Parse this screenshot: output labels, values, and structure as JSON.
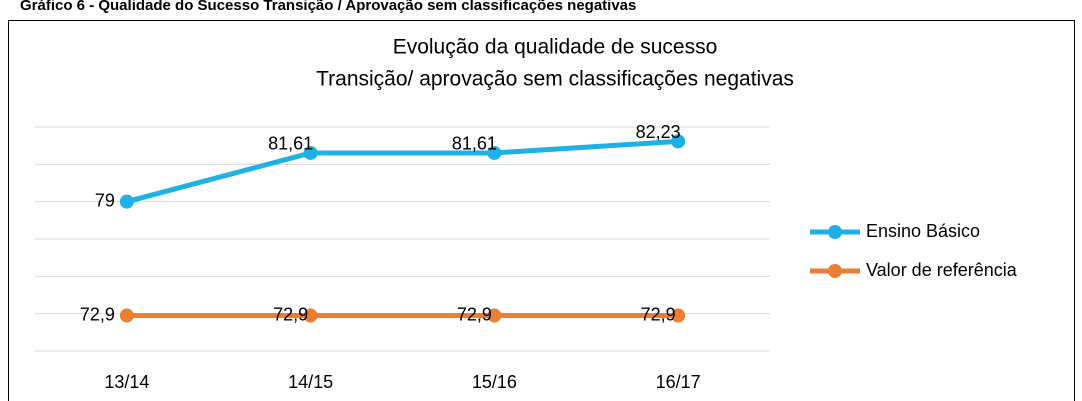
{
  "caption": "Gráfico 6 - Qualidade do Sucesso Transição / Aprovação sem classificações negativas",
  "chart_data": {
    "type": "line",
    "title": [
      "Evolução da qualidade de sucesso",
      "Transição/ aprovação sem classificações negativas"
    ],
    "categories": [
      "13/14",
      "14/15",
      "15/16",
      "16/17"
    ],
    "series": [
      {
        "name": "Ensino Básico",
        "color": "#1eb1e6",
        "values": [
          79,
          81.61,
          81.61,
          82.23
        ],
        "value_labels": [
          "79",
          "81,61",
          "81,61",
          "82,23"
        ]
      },
      {
        "name": "Valor de referência",
        "color": "#ed7d31",
        "values": [
          72.9,
          72.9,
          72.9,
          72.9
        ],
        "value_labels": [
          "72,9",
          "72,9",
          "72,9",
          "72,9"
        ]
      }
    ],
    "ylim": [
      71,
      83
    ],
    "yticks": [
      71,
      73,
      75,
      77,
      79,
      81,
      83
    ],
    "grid": true,
    "legend": "right"
  }
}
